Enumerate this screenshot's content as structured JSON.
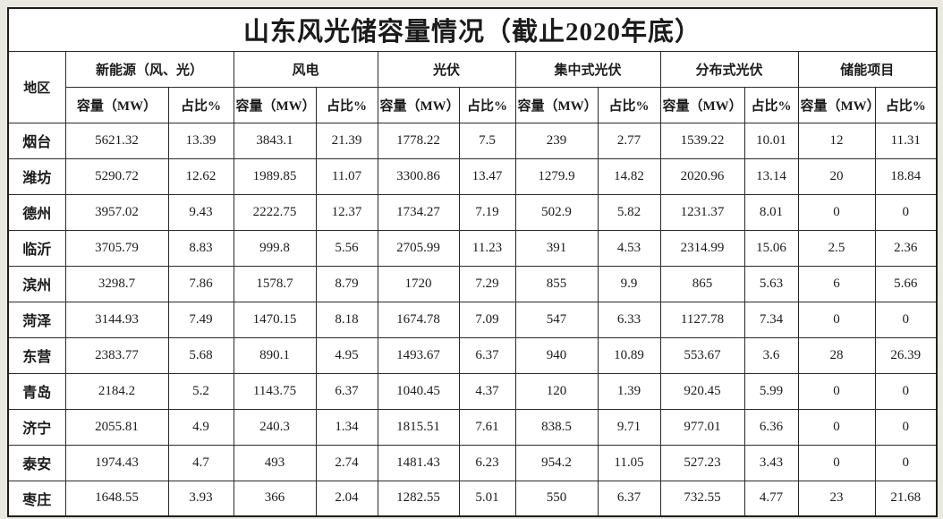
{
  "chart_data": {
    "type": "table",
    "title": "山东风光储容量情况（截止2020年底）",
    "region_column_header": "地区",
    "column_groups": [
      "新能源（风、光）",
      "风电",
      "光伏",
      "集中式光伏",
      "分布式光伏",
      "储能项目"
    ],
    "sub_headers": {
      "capacity": "容量（MW）",
      "share": "占比%"
    },
    "rows": [
      {
        "region": "烟台",
        "values": [
          "5621.32",
          "13.39",
          "3843.1",
          "21.39",
          "1778.22",
          "7.5",
          "239",
          "2.77",
          "1539.22",
          "10.01",
          "12",
          "11.31"
        ]
      },
      {
        "region": "潍坊",
        "values": [
          "5290.72",
          "12.62",
          "1989.85",
          "11.07",
          "3300.86",
          "13.47",
          "1279.9",
          "14.82",
          "2020.96",
          "13.14",
          "20",
          "18.84"
        ]
      },
      {
        "region": "德州",
        "values": [
          "3957.02",
          "9.43",
          "2222.75",
          "12.37",
          "1734.27",
          "7.19",
          "502.9",
          "5.82",
          "1231.37",
          "8.01",
          "0",
          "0"
        ]
      },
      {
        "region": "临沂",
        "values": [
          "3705.79",
          "8.83",
          "999.8",
          "5.56",
          "2705.99",
          "11.23",
          "391",
          "4.53",
          "2314.99",
          "15.06",
          "2.5",
          "2.36"
        ]
      },
      {
        "region": "滨州",
        "values": [
          "3298.7",
          "7.86",
          "1578.7",
          "8.79",
          "1720",
          "7.29",
          "855",
          "9.9",
          "865",
          "5.63",
          "6",
          "5.66"
        ]
      },
      {
        "region": "菏泽",
        "values": [
          "3144.93",
          "7.49",
          "1470.15",
          "8.18",
          "1674.78",
          "7.09",
          "547",
          "6.33",
          "1127.78",
          "7.34",
          "0",
          "0"
        ]
      },
      {
        "region": "东营",
        "values": [
          "2383.77",
          "5.68",
          "890.1",
          "4.95",
          "1493.67",
          "6.37",
          "940",
          "10.89",
          "553.67",
          "3.6",
          "28",
          "26.39"
        ]
      },
      {
        "region": "青岛",
        "values": [
          "2184.2",
          "5.2",
          "1143.75",
          "6.37",
          "1040.45",
          "4.37",
          "120",
          "1.39",
          "920.45",
          "5.99",
          "0",
          "0"
        ]
      },
      {
        "region": "济宁",
        "values": [
          "2055.81",
          "4.9",
          "240.3",
          "1.34",
          "1815.51",
          "7.61",
          "838.5",
          "9.71",
          "977.01",
          "6.36",
          "0",
          "0"
        ]
      },
      {
        "region": "泰安",
        "values": [
          "1974.43",
          "4.7",
          "493",
          "2.74",
          "1481.43",
          "6.23",
          "954.2",
          "11.05",
          "527.23",
          "3.43",
          "0",
          "0"
        ]
      },
      {
        "region": "枣庄",
        "values": [
          "1648.55",
          "3.93",
          "366",
          "2.04",
          "1282.55",
          "5.01",
          "550",
          "6.37",
          "732.55",
          "4.77",
          "23",
          "21.68"
        ]
      }
    ]
  },
  "colors": {
    "title": "#e50000",
    "border": "#2a2a2a",
    "page_background": "#eae9e1",
    "table_background": "#ffffff"
  }
}
